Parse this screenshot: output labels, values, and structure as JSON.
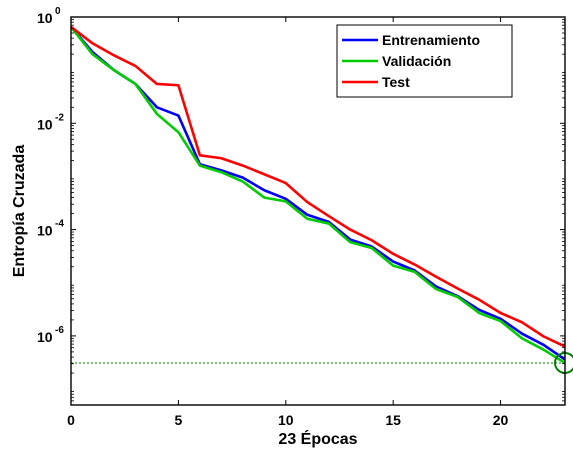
{
  "chart_data": {
    "type": "line",
    "xlabel": "23 Épocas",
    "ylabel": "Entropía Cruzada",
    "xlim": [
      0,
      23
    ],
    "ylim_log10": [
      -7.3,
      0
    ],
    "y_scale": "log",
    "x_ticks": [
      0,
      5,
      10,
      15,
      20
    ],
    "x_tick_labels": [
      "0",
      "5",
      "10",
      "15",
      "20"
    ],
    "y_ticks": [
      {
        "base": "10",
        "exp": "0"
      },
      {
        "base": "10",
        "exp": "-2"
      },
      {
        "base": "10",
        "exp": "-4"
      },
      {
        "base": "10",
        "exp": "-6"
      }
    ],
    "legend_position": "top-right",
    "x": [
      0,
      1,
      2,
      3,
      4,
      5,
      6,
      7,
      8,
      9,
      10,
      11,
      12,
      13,
      14,
      15,
      16,
      17,
      18,
      19,
      20,
      21,
      22,
      23
    ],
    "series": [
      {
        "name": "Entrenamiento",
        "color": "#0000ff",
        "values": [
          0.65,
          0.22,
          0.1,
          0.055,
          0.02,
          0.014,
          0.0017,
          0.0013,
          0.00095,
          0.00055,
          0.00038,
          0.00019,
          0.00014,
          6.5e-05,
          4.8e-05,
          2.5e-05,
          1.7e-05,
          8.5e-06,
          5.6e-06,
          3.1e-06,
          2.1e-06,
          1.1e-06,
          6.8e-07,
          3.6e-07
        ]
      },
      {
        "name": "Validación",
        "color": "#00cc00",
        "values": [
          0.65,
          0.2,
          0.1,
          0.055,
          0.015,
          0.0068,
          0.0016,
          0.0012,
          0.0008,
          0.0004,
          0.00034,
          0.00016,
          0.00013,
          5.8e-05,
          4.5e-05,
          2.1e-05,
          1.6e-05,
          7.6e-06,
          5.4e-06,
          2.7e-06,
          1.9e-06,
          9e-07,
          5.5e-07,
          3.1e-07
        ]
      },
      {
        "name": "Test",
        "color": "#ff0000",
        "values": [
          0.65,
          0.32,
          0.19,
          0.12,
          0.055,
          0.052,
          0.0025,
          0.0022,
          0.0016,
          0.0011,
          0.00075,
          0.00033,
          0.00018,
          0.0001,
          6.3e-05,
          3.5e-05,
          2.2e-05,
          1.3e-05,
          7.8e-06,
          4.8e-06,
          2.7e-06,
          1.8e-06,
          9.8e-07,
          6.3e-07
        ]
      }
    ],
    "best": {
      "epoch": 23,
      "value": 3.1e-07,
      "color": "#008000"
    },
    "grid": false
  }
}
